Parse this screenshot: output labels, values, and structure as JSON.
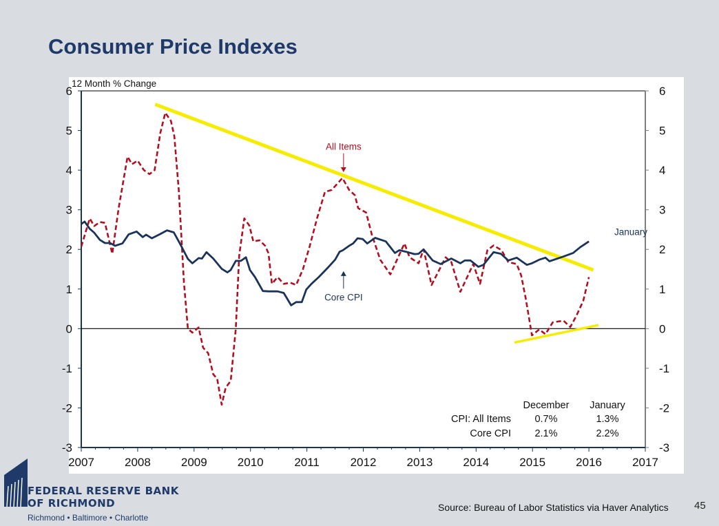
{
  "title": "Consumer Price Indexes",
  "source": "Source: Bureau of Labor Statistics via Haver Analytics",
  "page_number": "45",
  "logo": {
    "line1": "FEDERAL RESERVE BANK",
    "line2": "OF RICHMOND",
    "sub": "Richmond • Baltimore • Charlotte"
  },
  "chart_data": {
    "type": "line",
    "ylabel": "12 Month % Change",
    "xlim": [
      2007,
      2017
    ],
    "ylim": [
      -3,
      6
    ],
    "x_ticks": [
      "2007",
      "2008",
      "2009",
      "2010",
      "2011",
      "2012",
      "2013",
      "2014",
      "2015",
      "2016",
      "2017"
    ],
    "y_ticks": [
      "6",
      "5",
      "4",
      "3",
      "2",
      "1",
      "0",
      "-1",
      "-2",
      "-3"
    ],
    "grid": false,
    "colors": {
      "all_items": "#b01020",
      "core": "#1a3358",
      "trend": "#f5ec00",
      "title": "#1f3a68"
    },
    "series": [
      {
        "name": "All Items",
        "style": "dashed",
        "x": [
          2007.0,
          2007.15,
          2007.23,
          2007.33,
          2007.42,
          2007.55,
          2007.66,
          2007.82,
          2007.9,
          2008.0,
          2008.11,
          2008.21,
          2008.3,
          2008.4,
          2008.49,
          2008.59,
          2008.65,
          2008.73,
          2008.82,
          2008.89,
          2008.97,
          2009.08,
          2009.16,
          2009.25,
          2009.34,
          2009.41,
          2009.49,
          2009.56,
          2009.65,
          2009.74,
          2009.8,
          2009.89,
          2009.98,
          2010.05,
          2010.16,
          2010.26,
          2010.32,
          2010.38,
          2010.48,
          2010.59,
          2010.71,
          2010.81,
          2010.93,
          2011.05,
          2011.18,
          2011.32,
          2011.44,
          2011.63,
          2011.75,
          2011.85,
          2011.91,
          2012.05,
          2012.15,
          2012.3,
          2012.48,
          2012.73,
          2012.82,
          2012.98,
          2013.07,
          2013.21,
          2013.46,
          2013.56,
          2013.72,
          2013.95,
          2014.07,
          2014.2,
          2014.31,
          2014.45,
          2014.57,
          2014.72,
          2014.8,
          2014.88,
          2014.99,
          2015.12,
          2015.23,
          2015.36,
          2015.55,
          2015.67,
          2015.78,
          2015.9,
          2016.0
        ],
        "y": [
          2.07,
          2.78,
          2.59,
          2.69,
          2.67,
          1.89,
          3.02,
          4.34,
          4.15,
          4.24,
          4.0,
          3.9,
          4.0,
          4.93,
          5.45,
          5.24,
          4.86,
          3.47,
          1.16,
          0.0,
          -0.1,
          0.03,
          -0.48,
          -0.62,
          -1.15,
          -1.27,
          -1.92,
          -1.49,
          -1.32,
          0.0,
          1.84,
          2.78,
          2.6,
          2.2,
          2.23,
          2.09,
          1.9,
          1.13,
          1.3,
          1.13,
          1.16,
          1.1,
          1.5,
          2.08,
          2.78,
          3.45,
          3.5,
          3.8,
          3.5,
          3.37,
          3.04,
          2.93,
          2.38,
          1.74,
          1.37,
          2.15,
          1.8,
          1.65,
          2.0,
          1.1,
          1.8,
          1.68,
          0.93,
          1.63,
          1.13,
          1.98,
          2.1,
          1.98,
          1.68,
          1.63,
          1.34,
          0.76,
          -0.17,
          -0.02,
          -0.14,
          0.16,
          0.2,
          0.04,
          0.33,
          0.7,
          1.3
        ]
      },
      {
        "name": "Core CPI",
        "style": "solid",
        "x": [
          2007.0,
          2007.06,
          2007.15,
          2007.23,
          2007.33,
          2007.42,
          2007.51,
          2007.6,
          2007.73,
          2007.84,
          2007.98,
          2008.09,
          2008.15,
          2008.25,
          2008.39,
          2008.52,
          2008.64,
          2008.76,
          2008.89,
          2008.97,
          2009.08,
          2009.14,
          2009.22,
          2009.34,
          2009.49,
          2009.59,
          2009.65,
          2009.74,
          2009.83,
          2009.92,
          2009.99,
          2010.08,
          2010.22,
          2010.32,
          2010.48,
          2010.59,
          2010.72,
          2010.81,
          2010.91,
          2010.99,
          2011.08,
          2011.21,
          2011.38,
          2011.5,
          2011.58,
          2011.64,
          2011.75,
          2011.82,
          2011.9,
          2011.99,
          2012.07,
          2012.21,
          2012.4,
          2012.56,
          2012.64,
          2012.76,
          2012.91,
          2012.98,
          2013.07,
          2013.23,
          2013.37,
          2013.56,
          2013.72,
          2013.8,
          2013.9,
          2014.04,
          2014.13,
          2014.31,
          2014.44,
          2014.57,
          2014.72,
          2014.9,
          2014.99,
          2015.12,
          2015.23,
          2015.3,
          2015.55,
          2015.72,
          2015.85,
          2016.0
        ],
        "y": [
          2.64,
          2.7,
          2.52,
          2.42,
          2.24,
          2.16,
          2.16,
          2.09,
          2.15,
          2.38,
          2.45,
          2.31,
          2.37,
          2.28,
          2.38,
          2.48,
          2.43,
          2.12,
          1.76,
          1.65,
          1.78,
          1.77,
          1.93,
          1.77,
          1.51,
          1.42,
          1.48,
          1.71,
          1.71,
          1.8,
          1.48,
          1.3,
          0.95,
          0.94,
          0.94,
          0.9,
          0.59,
          0.67,
          0.67,
          0.99,
          1.13,
          1.3,
          1.55,
          1.74,
          1.94,
          1.98,
          2.09,
          2.15,
          2.28,
          2.26,
          2.15,
          2.29,
          2.2,
          1.91,
          1.98,
          1.94,
          1.88,
          1.89,
          2.0,
          1.72,
          1.63,
          1.77,
          1.65,
          1.72,
          1.72,
          1.56,
          1.61,
          1.93,
          1.89,
          1.72,
          1.79,
          1.61,
          1.65,
          1.74,
          1.79,
          1.7,
          1.82,
          1.91,
          2.06,
          2.2
        ]
      }
    ],
    "trendlines": [
      {
        "x": [
          2008.31,
          2016.08
        ],
        "y": [
          5.66,
          1.48
        ]
      },
      {
        "x": [
          2014.68,
          2016.17
        ],
        "y": [
          -0.35,
          0.09
        ]
      }
    ],
    "annotations": [
      {
        "text": "All Items",
        "x": 2011.65,
        "y": 4.6,
        "arrow_to": [
          2011.65,
          3.95
        ],
        "color": "#b01020"
      },
      {
        "text": "Core CPI",
        "x": 2011.65,
        "y": 0.8,
        "arrow_to": [
          2011.65,
          1.45
        ],
        "color": "#1a3358"
      },
      {
        "text": "January",
        "x": 2016.45,
        "y": 2.45,
        "color": "#1a3358"
      }
    ],
    "table": {
      "headers": [
        "",
        "December",
        "January"
      ],
      "rows": [
        [
          "CPI: All Items",
          "0.7%",
          "1.3%"
        ],
        [
          "Core CPI",
          "2.1%",
          "2.2%"
        ]
      ]
    }
  }
}
